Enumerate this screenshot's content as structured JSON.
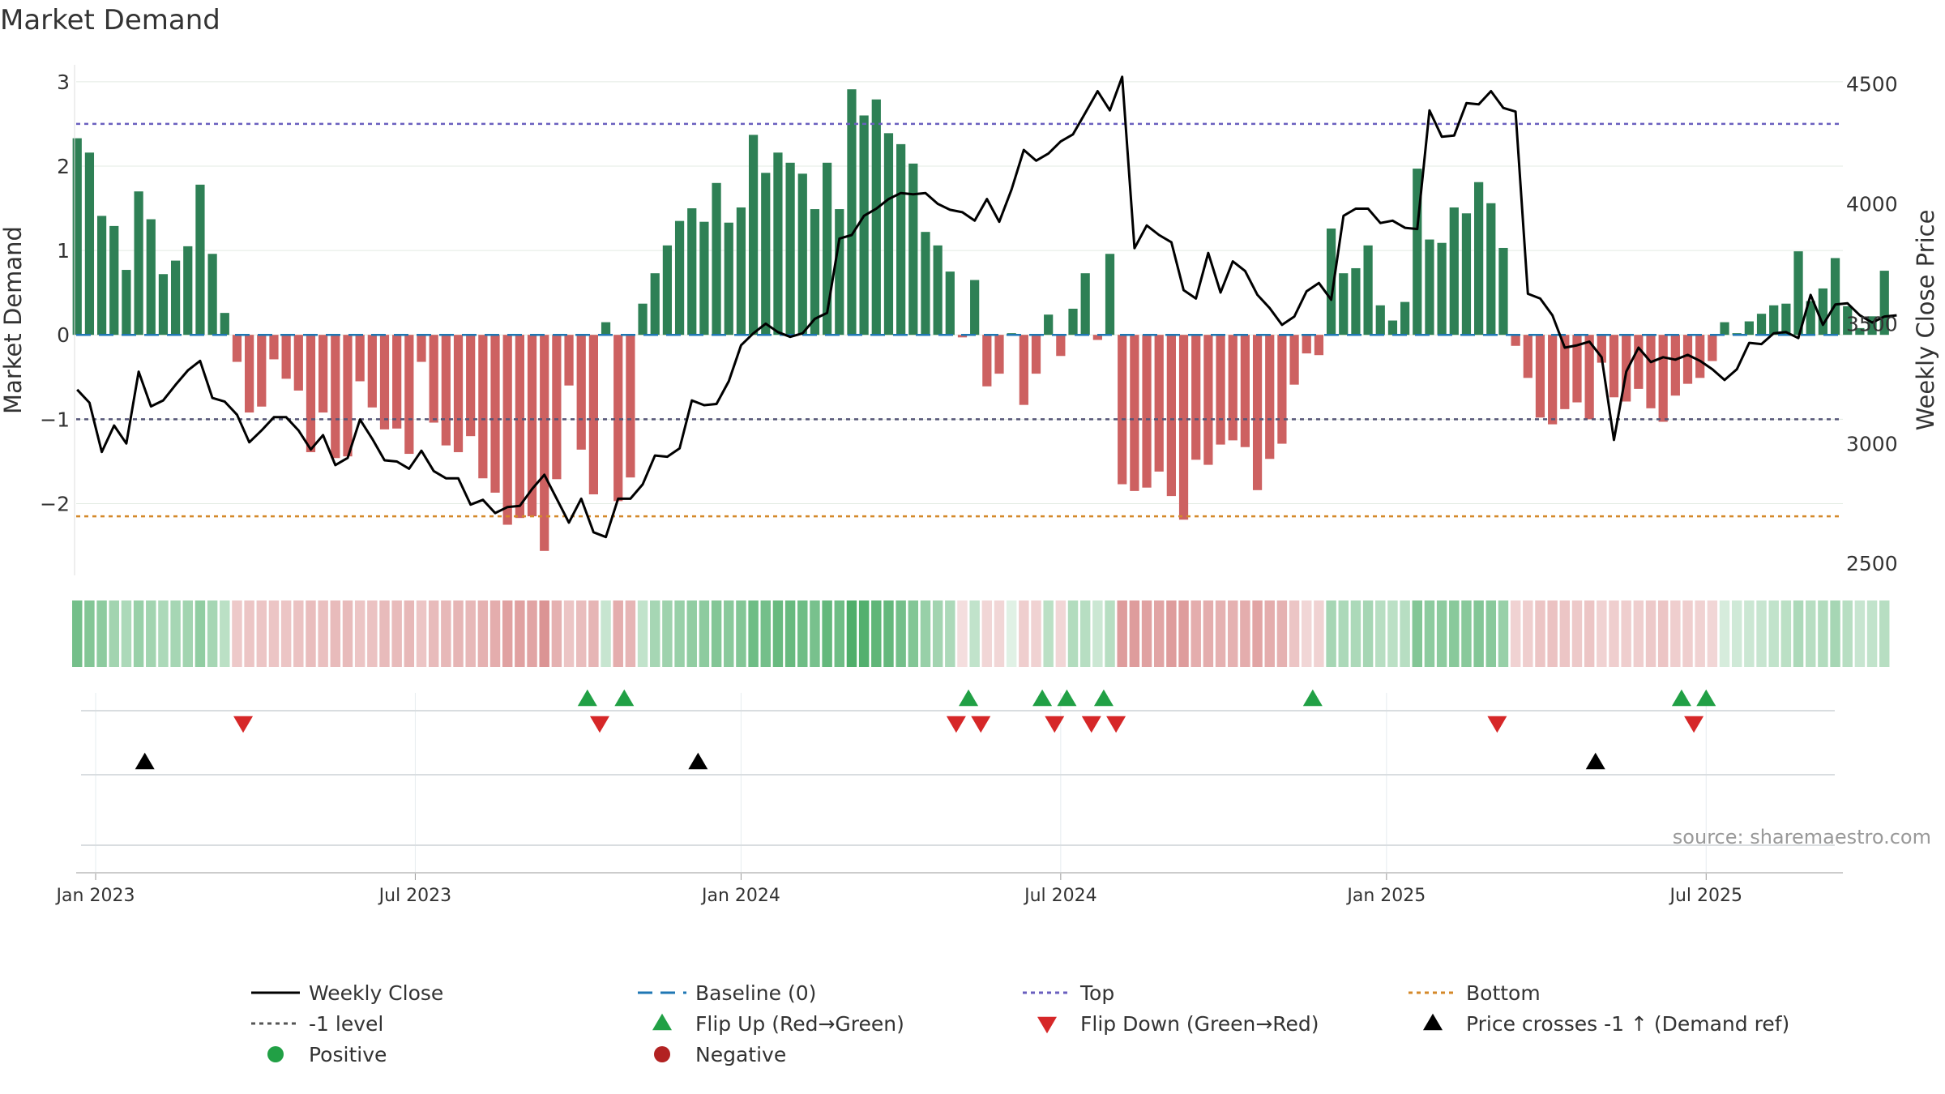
{
  "chart_data": {
    "type": "bar",
    "title": "Market Demand",
    "ylabel_left": "Market Demand",
    "ylabel_right": "Weekly Close Price",
    "source": "source: sharemaestro.com",
    "x_ticks": [
      {
        "week": 0,
        "label": "Jan 2023"
      },
      {
        "week": 26,
        "label": "Jul 2023"
      },
      {
        "week": 52.5,
        "label": "Jan 2024"
      },
      {
        "week": 78.5,
        "label": "Jul 2024"
      },
      {
        "week": 105,
        "label": "Jan 2025"
      },
      {
        "week": 131,
        "label": "Jul 2025"
      }
    ],
    "left_axis": {
      "ylim": [
        -2.85,
        3.2
      ],
      "ticks": [
        3,
        2,
        1,
        0,
        -1,
        -2
      ],
      "tick_labels": [
        "3",
        "2",
        "1",
        "0",
        "−1",
        "−2"
      ]
    },
    "right_axis": {
      "ylim": [
        2450,
        4580
      ],
      "ticks": [
        4500,
        4000,
        3500,
        3000,
        2500
      ],
      "tick_labels": [
        "4500",
        "4000",
        "3500",
        "3000",
        "2500"
      ]
    },
    "reference_lines": {
      "top": 2.5,
      "bottom": -2.15,
      "minus_one": -1,
      "baseline": 0
    },
    "series": [
      {
        "name": "Market Demand",
        "type": "bar",
        "start_week": -1.5,
        "values": [
          2.33,
          2.16,
          1.41,
          1.29,
          0.77,
          1.7,
          1.37,
          0.72,
          0.88,
          1.05,
          1.78,
          0.96,
          0.26,
          -0.32,
          -0.92,
          -0.85,
          -0.29,
          -0.52,
          -0.66,
          -1.39,
          -0.92,
          -1.46,
          -1.44,
          -0.55,
          -0.86,
          -1.12,
          -1.11,
          -1.41,
          -0.32,
          -1.04,
          -1.31,
          -1.39,
          -1.2,
          -1.7,
          -1.87,
          -2.25,
          -2.17,
          -2.15,
          -2.56,
          -1.71,
          -0.6,
          -1.36,
          -1.89,
          0.15,
          -1.97,
          -1.69,
          0.37,
          0.73,
          1.06,
          1.35,
          1.5,
          1.34,
          1.8,
          1.33,
          1.51,
          2.37,
          1.92,
          2.16,
          2.04,
          1.91,
          1.49,
          2.04,
          1.49,
          2.91,
          2.6,
          2.79,
          2.39,
          2.26,
          2.03,
          1.22,
          1.06,
          0.75,
          -0.03,
          0.65,
          -0.61,
          -0.46,
          0.02,
          -0.83,
          -0.46,
          0.24,
          -0.25,
          0.31,
          0.73,
          -0.06,
          0.96,
          -1.77,
          -1.85,
          -1.81,
          -1.62,
          -1.91,
          -2.19,
          -1.48,
          -1.54,
          -1.3,
          -1.25,
          -1.33,
          -1.84,
          -1.47,
          -1.29,
          -0.59,
          -0.22,
          -0.24,
          1.26,
          0.73,
          0.79,
          1.06,
          0.35,
          0.17,
          0.39,
          1.97,
          1.13,
          1.09,
          1.51,
          1.44,
          1.81,
          1.56,
          1.03,
          -0.13,
          -0.51,
          -0.98,
          -1.06,
          -0.88,
          -0.8,
          -1.0,
          -0.33,
          -0.74,
          -0.79,
          -0.64,
          -0.87,
          -1.03,
          -0.72,
          -0.58,
          -0.51,
          -0.31,
          0.15,
          0.02,
          0.16,
          0.25,
          0.35,
          0.37,
          0.99,
          0.4,
          0.55,
          0.91,
          0.34,
          0.08,
          0.22,
          0.76
        ]
      },
      {
        "name": "Weekly Close",
        "type": "line",
        "start_week": -1.5,
        "values": [
          3225,
          3170,
          2965,
          3075,
          3000,
          3300,
          3155,
          3180,
          3245,
          3305,
          3345,
          3190,
          3175,
          3120,
          3005,
          3055,
          3110,
          3110,
          3055,
          2975,
          3035,
          2910,
          2940,
          3100,
          3020,
          2930,
          2925,
          2895,
          2970,
          2885,
          2855,
          2855,
          2745,
          2765,
          2710,
          2735,
          2740,
          2810,
          2870,
          2770,
          2670,
          2770,
          2630,
          2610,
          2770,
          2770,
          2830,
          2950,
          2945,
          2980,
          3180,
          3160,
          3165,
          3260,
          3410,
          3460,
          3500,
          3465,
          3445,
          3460,
          3520,
          3545,
          3855,
          3870,
          3950,
          3980,
          4020,
          4045,
          4040,
          4045,
          4000,
          3975,
          3965,
          3930,
          4020,
          3925,
          4060,
          4225,
          4180,
          4210,
          4260,
          4290,
          4380,
          4470,
          4390,
          4530,
          3815,
          3910,
          3870,
          3840,
          3640,
          3605,
          3795,
          3630,
          3760,
          3720,
          3620,
          3565,
          3495,
          3530,
          3635,
          3670,
          3600,
          3950,
          3980,
          3980,
          3920,
          3930,
          3900,
          3895,
          4390,
          4280,
          4285,
          4420,
          4415,
          4470,
          4400,
          4385,
          3625,
          3605,
          3535,
          3400,
          3410,
          3425,
          3360,
          3015,
          3300,
          3400,
          3340,
          3360,
          3350,
          3370,
          3345,
          3310,
          3265,
          3310,
          3420,
          3415,
          3460,
          3465,
          3440,
          3620,
          3495,
          3580,
          3585,
          3535,
          3505,
          3530,
          3535
        ]
      }
    ],
    "heat_strip_levels": [
      0.62,
      0.55,
      0.5,
      0.4,
      0.35,
      0.45,
      0.4,
      0.35,
      0.38,
      0.4,
      0.48,
      0.38,
      0.28,
      -0.28,
      -0.3,
      -0.3,
      -0.3,
      -0.3,
      -0.32,
      -0.35,
      -0.33,
      -0.36,
      -0.36,
      -0.3,
      -0.32,
      -0.36,
      -0.36,
      -0.38,
      -0.3,
      -0.36,
      -0.38,
      -0.4,
      -0.38,
      -0.42,
      -0.45,
      -0.52,
      -0.52,
      -0.5,
      -0.6,
      -0.42,
      -0.3,
      -0.35,
      -0.4,
      0.22,
      -0.45,
      -0.4,
      0.25,
      0.38,
      0.42,
      0.45,
      0.48,
      0.5,
      0.55,
      0.52,
      0.55,
      0.65,
      0.62,
      0.68,
      0.68,
      0.65,
      0.6,
      0.7,
      0.65,
      0.8,
      0.78,
      0.72,
      0.7,
      0.62,
      0.55,
      0.45,
      0.4,
      0.35,
      -0.15,
      0.25,
      -0.2,
      -0.2,
      0.1,
      -0.25,
      -0.22,
      0.28,
      -0.2,
      0.32,
      0.3,
      0.2,
      0.3,
      -0.55,
      -0.55,
      -0.52,
      -0.5,
      -0.55,
      -0.55,
      -0.45,
      -0.45,
      -0.42,
      -0.42,
      -0.45,
      -0.5,
      -0.45,
      -0.42,
      -0.3,
      -0.2,
      -0.22,
      0.38,
      0.35,
      0.35,
      0.38,
      0.3,
      0.28,
      0.3,
      0.55,
      0.5,
      0.5,
      0.52,
      0.52,
      0.55,
      0.52,
      0.45,
      -0.22,
      -0.25,
      -0.3,
      -0.32,
      -0.3,
      -0.28,
      -0.3,
      -0.22,
      -0.25,
      -0.25,
      -0.25,
      -0.28,
      -0.3,
      -0.25,
      -0.25,
      -0.22,
      -0.2,
      0.15,
      0.18,
      0.2,
      0.22,
      0.25,
      0.28,
      0.35,
      0.3,
      0.32,
      0.38,
      0.3,
      0.22,
      0.25,
      0.3
    ],
    "flip_up_weeks": [
      40,
      43,
      71,
      77,
      79,
      82,
      99,
      129,
      131
    ],
    "flip_down_weeks": [
      12,
      41,
      70,
      72,
      78,
      81,
      83,
      114,
      130
    ],
    "price_cross_weeks": [
      4,
      49,
      122
    ],
    "legend": [
      {
        "key": "weekly_close",
        "label": "Weekly Close",
        "color": "#000000"
      },
      {
        "key": "baseline",
        "label": "Baseline (0)",
        "color": "#1f77b4"
      },
      {
        "key": "top",
        "label": "Top",
        "color": "#6a5fbf"
      },
      {
        "key": "bottom",
        "label": "Bottom",
        "color": "#d4892a"
      },
      {
        "key": "minus_one",
        "label": "-1 level",
        "color": "#555555"
      },
      {
        "key": "flip_up",
        "label": "Flip Up (Red→Green)",
        "color": "#21a045"
      },
      {
        "key": "flip_down",
        "label": "Flip Down (Green→Red)",
        "color": "#d62728"
      },
      {
        "key": "price_cross",
        "label": "Price crosses -1 ↑ (Demand ref)",
        "color": "#000000"
      },
      {
        "key": "positive",
        "label": "Positive",
        "color": "#21a045"
      },
      {
        "key": "negative",
        "label": "Negative",
        "color": "#b22222"
      }
    ],
    "colors": {
      "positive_bar": "#2e8055",
      "negative_bar": "#cd6161",
      "strip_green": "#30a050",
      "strip_red": "#c85a5a"
    }
  }
}
